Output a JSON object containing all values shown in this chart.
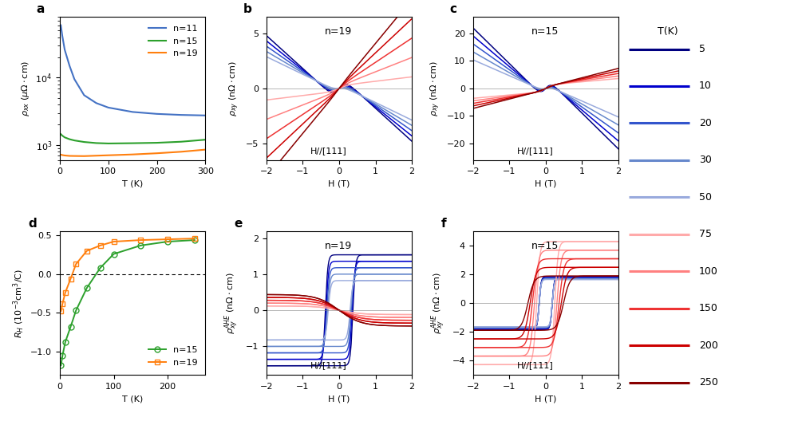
{
  "panel_a": {
    "label": "a",
    "xlabel": "T (K)",
    "ylabel": "ρₚₚ (μΩ·cm)",
    "xlim": [
      0,
      300
    ],
    "ylim_log": [
      600,
      80000
    ],
    "curves": [
      {
        "n": 11,
        "color": "#4472c4",
        "T": [
          2,
          5,
          10,
          20,
          30,
          50,
          75,
          100,
          150,
          200,
          250,
          300
        ],
        "rho": [
          60000,
          42000,
          26000,
          15000,
          9500,
          5500,
          4200,
          3600,
          3100,
          2900,
          2800,
          2750
        ]
      },
      {
        "n": 15,
        "color": "#2ca02c",
        "T": [
          2,
          5,
          10,
          20,
          30,
          50,
          75,
          100,
          150,
          200,
          250,
          300
        ],
        "rho": [
          1450,
          1380,
          1300,
          1220,
          1170,
          1110,
          1070,
          1055,
          1065,
          1080,
          1120,
          1200
        ]
      },
      {
        "n": 19,
        "color": "#ff7f0e",
        "T": [
          2,
          5,
          10,
          20,
          30,
          50,
          75,
          100,
          150,
          200,
          250,
          300
        ],
        "rho": [
          720,
          710,
          700,
          690,
          688,
          685,
          695,
          705,
          725,
          755,
          795,
          855
        ]
      }
    ]
  },
  "panel_b": {
    "label": "b",
    "n_label": "n=19",
    "annotation": "H//[111]",
    "xlabel": "H (T)",
    "ylabel": "ρₚʸ (nΩ·cm)",
    "xlim": [
      -2,
      2
    ],
    "ylim": [
      -6.5,
      6.5
    ]
  },
  "panel_c": {
    "label": "c",
    "n_label": "n=15",
    "annotation": "H//[111]",
    "xlabel": "H (T)",
    "ylabel": "ρₚʸ (nΩ·cm)",
    "xlim": [
      -2,
      2
    ],
    "ylim": [
      -26,
      26
    ]
  },
  "panel_d": {
    "label": "d",
    "xlabel": "T (K)",
    "ylabel": "R_H (10⁻³cm³/C)",
    "xlim": [
      0,
      270
    ],
    "ylim": [
      -1.3,
      0.55
    ],
    "curves": [
      {
        "n": 15,
        "color": "#2ca02c",
        "marker": "o",
        "T": [
          2,
          5,
          10,
          20,
          30,
          50,
          75,
          100,
          150,
          200,
          250
        ],
        "RH": [
          -1.18,
          -1.05,
          -0.88,
          -0.68,
          -0.47,
          -0.18,
          0.08,
          0.26,
          0.37,
          0.42,
          0.44
        ]
      },
      {
        "n": 19,
        "color": "#ff7f0e",
        "marker": "s",
        "T": [
          2,
          5,
          10,
          20,
          30,
          50,
          75,
          100,
          150,
          200,
          250
        ],
        "RH": [
          -0.48,
          -0.38,
          -0.24,
          -0.06,
          0.13,
          0.3,
          0.37,
          0.42,
          0.44,
          0.45,
          0.46
        ]
      }
    ]
  },
  "panel_e": {
    "label": "e",
    "n_label": "n=19",
    "annotation": "H//[111]",
    "xlabel": "H (T)",
    "ylabel": "ρₚʸᴬᴴᴱ (nΩ·cm)",
    "xlim": [
      -2,
      2
    ],
    "ylim": [
      -1.8,
      2.2
    ]
  },
  "panel_f": {
    "label": "f",
    "n_label": "n=15",
    "annotation": "H//[111]",
    "xlabel": "H (T)",
    "ylabel": "ρₚʸᴬᴴᴱ (nΩ·cm)",
    "xlim": [
      -2,
      2
    ],
    "ylim": [
      -5.0,
      5.0
    ]
  },
  "temps": [
    5,
    10,
    20,
    30,
    50,
    75,
    100,
    150,
    200,
    250
  ],
  "blue_colors": [
    "#000080",
    "#0000CC",
    "#3355CC",
    "#6688CC",
    "#99AADD"
  ],
  "red_colors": [
    "#FFAAAA",
    "#FF8080",
    "#EE3333",
    "#CC0000",
    "#880000"
  ],
  "background_color": "#ffffff"
}
